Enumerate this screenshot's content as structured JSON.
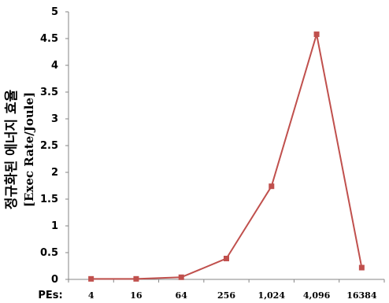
{
  "chart_data": {
    "type": "line",
    "title": "",
    "ylabel": "정규화된 에너지 효율",
    "ylabel_sub": "[Exec Rate/Joule]",
    "xlabel_prefix": "PEs:",
    "categories": [
      "4",
      "16",
      "64",
      "256",
      "1,024",
      "4,096",
      "16384"
    ],
    "series": [
      {
        "values": [
          0.01,
          0.01,
          0.04,
          0.39,
          1.74,
          4.58,
          0.22
        ]
      }
    ],
    "ylim": [
      0,
      5
    ],
    "yticks": [
      "0",
      "0.5",
      "1",
      "1.5",
      "2",
      "2.5",
      "3",
      "3.5",
      "4",
      "4.5",
      "5"
    ],
    "grid": false,
    "legend": "none",
    "line_color": "#c0504d",
    "marker_color": "#c0504d"
  }
}
